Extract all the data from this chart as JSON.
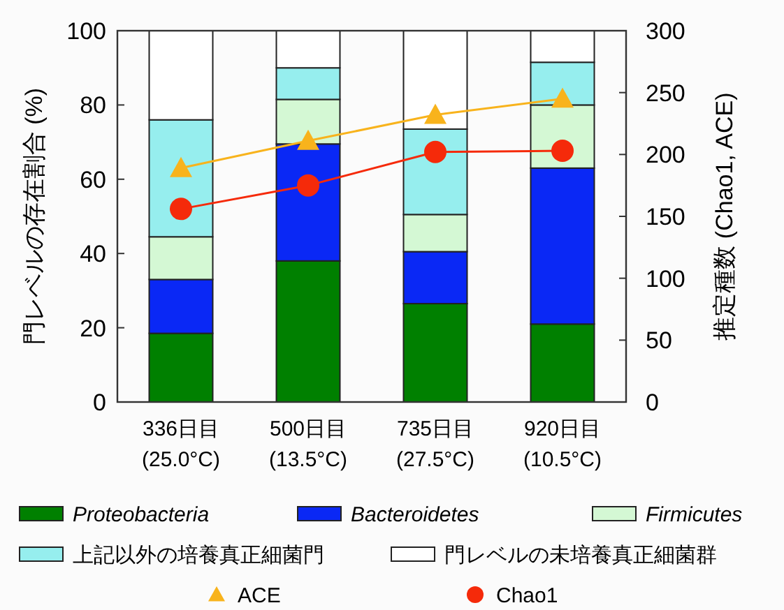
{
  "chart_data": {
    "type": "bar",
    "stacked": true,
    "categories": [
      "336日目\n(25.0°C)",
      "500日目\n(13.5°C)",
      "735日目\n(27.5°C)",
      "920日目\n(10.5°C)"
    ],
    "ylabel": "門レベルの存在割合 (%)",
    "y2label": "推定種数 (Chao1, ACE)",
    "ylim": [
      0,
      100
    ],
    "yticks": [
      0,
      20,
      40,
      60,
      80,
      100
    ],
    "y2lim": [
      0,
      300
    ],
    "y2ticks": [
      0,
      50,
      100,
      150,
      200,
      250,
      300
    ],
    "legend": "bottom",
    "grid": false,
    "series": [
      {
        "name": "Proteobacteria",
        "color": "#008000",
        "values": [
          18.5,
          38,
          26.5,
          21
        ]
      },
      {
        "name": "Bacteroidetes",
        "color": "#0a28f5",
        "values": [
          14.5,
          31.5,
          14,
          42
        ]
      },
      {
        "name": "Firmicutes",
        "color": "#d4f8d4",
        "values": [
          11.5,
          12,
          10,
          17
        ]
      },
      {
        "name": "上記以外の培養真正細菌門",
        "color": "#96eeee",
        "values": [
          31.5,
          8.5,
          23,
          11.5
        ]
      },
      {
        "name": "門レベルの未培養真正細菌群",
        "color": "#ffffff",
        "values": [
          24,
          10,
          26.5,
          8.5
        ]
      },
      {
        "name": "ACE",
        "type": "line",
        "axis": "y2",
        "marker": "triangle",
        "color": "#f8b31c",
        "values": [
          189,
          211,
          232,
          245
        ]
      },
      {
        "name": "Chao1",
        "type": "line",
        "axis": "y2",
        "marker": "circle",
        "color": "#f52a0a",
        "values": [
          156,
          175,
          202,
          203
        ]
      }
    ]
  }
}
